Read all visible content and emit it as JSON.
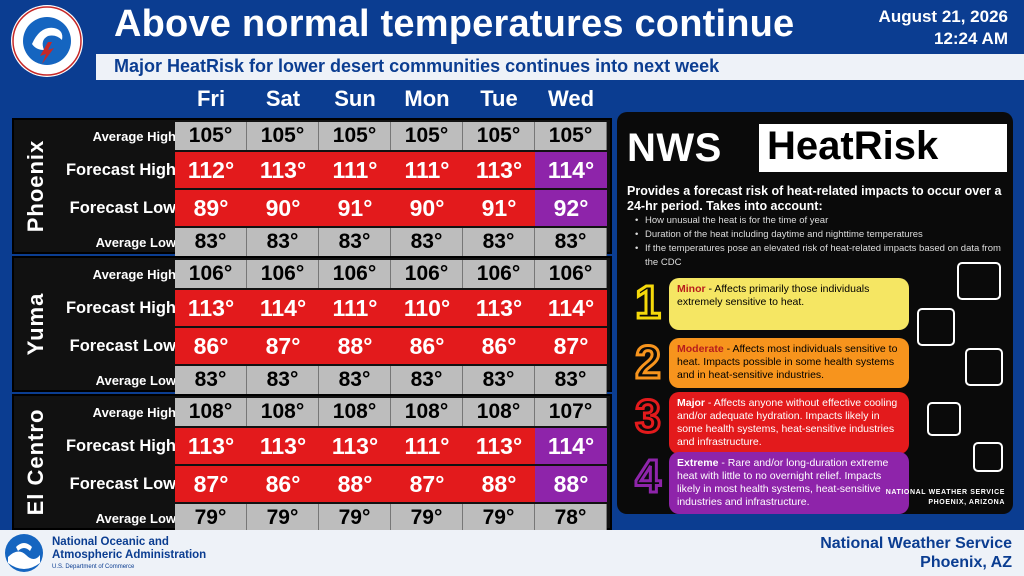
{
  "header": {
    "title": "Above normal temperatures continue",
    "subtitle": "Major HeatRisk for lower desert communities continues into next week",
    "date": "August 21, 2026",
    "time": "12:24 AM",
    "logo_text": "NATIONAL WEATHER SERVICE"
  },
  "days": [
    "Fri",
    "Sat",
    "Sun",
    "Mon",
    "Tue",
    "Wed"
  ],
  "row_labels": {
    "avg_high": "Average High",
    "fc_high": "Forecast High",
    "fc_low": "Forecast Low",
    "avg_low": "Average Low"
  },
  "cities": [
    {
      "name": "Phoenix",
      "avg_high": [
        "105°",
        "105°",
        "105°",
        "105°",
        "105°",
        "105°"
      ],
      "fc_high": [
        "112°",
        "113°",
        "111°",
        "111°",
        "113°",
        "114°"
      ],
      "fc_low": [
        "89°",
        "90°",
        "91°",
        "90°",
        "91°",
        "92°"
      ],
      "avg_low": [
        "83°",
        "83°",
        "83°",
        "83°",
        "83°",
        "83°"
      ],
      "fc_high_risk": [
        "major",
        "major",
        "major",
        "major",
        "major",
        "extreme"
      ],
      "fc_low_risk": [
        "major",
        "major",
        "major",
        "major",
        "major",
        "extreme"
      ]
    },
    {
      "name": "Yuma",
      "avg_high": [
        "106°",
        "106°",
        "106°",
        "106°",
        "106°",
        "106°"
      ],
      "fc_high": [
        "113°",
        "114°",
        "111°",
        "110°",
        "113°",
        "114°"
      ],
      "fc_low": [
        "86°",
        "87°",
        "88°",
        "86°",
        "86°",
        "87°"
      ],
      "avg_low": [
        "83°",
        "83°",
        "83°",
        "83°",
        "83°",
        "83°"
      ],
      "fc_high_risk": [
        "major",
        "major",
        "major",
        "major",
        "major",
        "major"
      ],
      "fc_low_risk": [
        "major",
        "major",
        "major",
        "major",
        "major",
        "major"
      ]
    },
    {
      "name": "El Centro",
      "avg_high": [
        "108°",
        "108°",
        "108°",
        "108°",
        "108°",
        "107°"
      ],
      "fc_high": [
        "113°",
        "113°",
        "113°",
        "111°",
        "113°",
        "114°"
      ],
      "fc_low": [
        "87°",
        "86°",
        "88°",
        "87°",
        "88°",
        "88°"
      ],
      "avg_low": [
        "79°",
        "79°",
        "79°",
        "79°",
        "79°",
        "78°"
      ],
      "fc_high_risk": [
        "major",
        "major",
        "major",
        "major",
        "major",
        "extreme"
      ],
      "fc_low_risk": [
        "major",
        "major",
        "major",
        "major",
        "major",
        "extreme"
      ]
    }
  ],
  "risk_colors": {
    "major": "#e31a1c",
    "extreme": "#8e24aa",
    "average": "#bdbdbd"
  },
  "panel": {
    "title_left": "NWS",
    "title_right": "HeatRisk",
    "description": "Provides a forecast risk of heat-related impacts to occur over a 24-hr period. Takes into account:",
    "bullets": [
      "How unusual the heat is for the time of year",
      "Duration of the heat including daytime and nighttime temperatures",
      "If the temperatures pose an elevated risk of heat-related impacts based on data from the CDC"
    ],
    "levels": [
      {
        "number": "1",
        "name": "Minor",
        "text": " - Affects primarily those individuals extremely sensitive to heat.",
        "color": "#f5e663",
        "stroke": "#f5d90a"
      },
      {
        "number": "2",
        "name": "Moderate",
        "text": " - Affects most individuals sensitive to heat. Impacts possible in some health systems and in heat-sensitive industries.",
        "color": "#f7941d",
        "stroke": "#f7941d"
      },
      {
        "number": "3",
        "name": "Major",
        "text": " - Affects anyone without effective cooling and/or adequate hydration. Impacts likely in some health systems, heat-sensitive industries and infrastructure.",
        "color": "#e31a1c",
        "stroke": "#e31a1c"
      },
      {
        "number": "4",
        "name": "Extreme",
        "text": " - Rare and/or long-duration extreme heat with little to no overnight relief. Impacts likely in most health systems, heat-sensitive industries and infrastructure.",
        "color": "#8e24aa",
        "stroke": "#8e24aa"
      }
    ],
    "footer_line1": "NATIONAL WEATHER SERVICE",
    "footer_line2": "PHOENIX, ARIZONA"
  },
  "footer": {
    "noaa_line1": "National Oceanic and",
    "noaa_line2": "Atmospheric Administration",
    "noaa_sub": "U.S. Department of Commerce",
    "office_line1": "National Weather Service",
    "office_line2": "Phoenix, AZ"
  }
}
